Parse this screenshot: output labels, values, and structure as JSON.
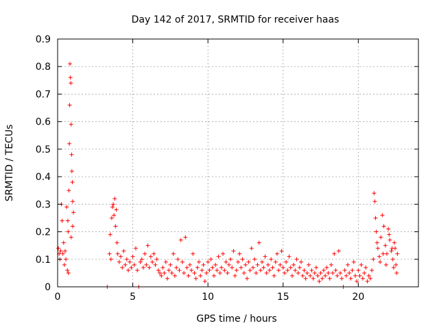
{
  "chart_data": {
    "type": "scatter",
    "title": "Day 142 of 2017, SRMTID for receiver haas",
    "xlabel": "GPS time / hours",
    "ylabel": "SRMTID / TECUs",
    "xlim": [
      0,
      24
    ],
    "ylim": [
      0,
      0.9
    ],
    "x_ticks": [
      "0",
      "5",
      "10",
      "15",
      "20"
    ],
    "y_ticks": [
      "0",
      "0.1",
      "0.2",
      "0.3",
      "0.4",
      "0.5",
      "0.6",
      "0.7",
      "0.8",
      "0.9"
    ],
    "x_tick_values": [
      0,
      5,
      10,
      15,
      20
    ],
    "y_tick_values": [
      0,
      0.1,
      0.2,
      0.3,
      0.4,
      0.5,
      0.6,
      0.7,
      0.8,
      0.9
    ],
    "grid": true,
    "marker": "plus",
    "color": "#ff0000",
    "series": [
      {
        "name": "SRMTID",
        "points": [
          [
            0.05,
            0.14
          ],
          [
            0.1,
            0.12
          ],
          [
            0.15,
            0.1
          ],
          [
            0.2,
            0.13
          ],
          [
            0.25,
            0.3
          ],
          [
            0.3,
            0.24
          ],
          [
            0.35,
            0.12
          ],
          [
            0.4,
            0.16
          ],
          [
            0.45,
            0.08
          ],
          [
            0.5,
            0.13
          ],
          [
            0.55,
            0.1
          ],
          [
            0.6,
            0.29
          ],
          [
            0.65,
            0.06
          ],
          [
            0.7,
            0.2
          ],
          [
            0.75,
            0.35
          ],
          [
            0.78,
            0.52
          ],
          [
            0.8,
            0.66
          ],
          [
            0.82,
            0.81
          ],
          [
            0.85,
            0.76
          ],
          [
            0.88,
            0.74
          ],
          [
            0.9,
            0.59
          ],
          [
            0.93,
            0.48
          ],
          [
            0.95,
            0.42
          ],
          [
            0.98,
            0.38
          ],
          [
            1.0,
            0.31
          ],
          [
            1.05,
            0.27
          ],
          [
            0.72,
            0.05
          ],
          [
            0.68,
            0.24
          ],
          [
            0.9,
            0.18
          ],
          [
            1.0,
            0.22
          ],
          [
            3.3,
            0.0
          ],
          [
            3.45,
            0.12
          ],
          [
            3.5,
            0.19
          ],
          [
            3.55,
            0.1
          ],
          [
            3.6,
            0.25
          ],
          [
            3.65,
            0.29
          ],
          [
            3.7,
            0.3
          ],
          [
            3.75,
            0.26
          ],
          [
            3.8,
            0.32
          ],
          [
            3.85,
            0.22
          ],
          [
            3.9,
            0.28
          ],
          [
            3.95,
            0.16
          ],
          [
            4.0,
            0.12
          ],
          [
            4.1,
            0.09
          ],
          [
            4.2,
            0.11
          ],
          [
            4.3,
            0.07
          ],
          [
            4.4,
            0.13
          ],
          [
            4.5,
            0.08
          ],
          [
            4.6,
            0.1
          ],
          [
            4.7,
            0.06
          ],
          [
            4.8,
            0.09
          ],
          [
            4.9,
            0.07
          ],
          [
            5.0,
            0.11
          ],
          [
            5.1,
            0.08
          ],
          [
            5.2,
            0.14
          ],
          [
            5.3,
            0.06
          ],
          [
            5.4,
            0.0
          ],
          [
            5.5,
            0.09
          ],
          [
            5.6,
            0.1
          ],
          [
            5.7,
            0.07
          ],
          [
            5.8,
            0.12
          ],
          [
            5.9,
            0.08
          ],
          [
            6.0,
            0.15
          ],
          [
            6.1,
            0.07
          ],
          [
            6.2,
            0.11
          ],
          [
            6.3,
            0.09
          ],
          [
            6.4,
            0.12
          ],
          [
            6.5,
            0.08
          ],
          [
            6.6,
            0.1
          ],
          [
            6.7,
            0.06
          ],
          [
            6.8,
            0.05
          ],
          [
            6.9,
            0.04
          ],
          [
            7.0,
            0.07
          ],
          [
            7.1,
            0.05
          ],
          [
            7.2,
            0.09
          ],
          [
            7.3,
            0.03
          ],
          [
            7.4,
            0.06
          ],
          [
            7.5,
            0.08
          ],
          [
            7.6,
            0.05
          ],
          [
            7.7,
            0.12
          ],
          [
            7.8,
            0.04
          ],
          [
            7.9,
            0.07
          ],
          [
            8.0,
            0.1
          ],
          [
            8.1,
            0.06
          ],
          [
            8.2,
            0.17
          ],
          [
            8.3,
            0.09
          ],
          [
            8.4,
            0.05
          ],
          [
            8.5,
            0.18
          ],
          [
            8.6,
            0.07
          ],
          [
            8.7,
            0.04
          ],
          [
            8.8,
            0.08
          ],
          [
            8.9,
            0.06
          ],
          [
            9.0,
            0.12
          ],
          [
            9.1,
            0.05
          ],
          [
            9.2,
            0.03
          ],
          [
            9.3,
            0.07
          ],
          [
            9.4,
            0.09
          ],
          [
            9.5,
            0.04
          ],
          [
            9.6,
            0.06
          ],
          [
            9.7,
            0.08
          ],
          [
            9.8,
            0.02
          ],
          [
            9.9,
            0.05
          ],
          [
            10.0,
            0.09
          ],
          [
            10.1,
            0.06
          ],
          [
            10.2,
            0.1
          ],
          [
            10.3,
            0.07
          ],
          [
            10.4,
            0.04
          ],
          [
            10.5,
            0.08
          ],
          [
            10.6,
            0.06
          ],
          [
            10.7,
            0.11
          ],
          [
            10.8,
            0.05
          ],
          [
            10.9,
            0.07
          ],
          [
            11.0,
            0.12
          ],
          [
            11.1,
            0.06
          ],
          [
            11.2,
            0.09
          ],
          [
            11.3,
            0.05
          ],
          [
            11.4,
            0.08
          ],
          [
            11.5,
            0.1
          ],
          [
            11.6,
            0.07
          ],
          [
            11.7,
            0.13
          ],
          [
            11.8,
            0.04
          ],
          [
            11.9,
            0.06
          ],
          [
            12.0,
            0.09
          ],
          [
            12.1,
            0.12
          ],
          [
            12.2,
            0.07
          ],
          [
            12.3,
            0.1
          ],
          [
            12.4,
            0.05
          ],
          [
            12.5,
            0.08
          ],
          [
            12.6,
            0.03
          ],
          [
            12.7,
            0.09
          ],
          [
            12.8,
            0.06
          ],
          [
            12.9,
            0.14
          ],
          [
            13.0,
            0.07
          ],
          [
            13.1,
            0.1
          ],
          [
            13.2,
            0.05
          ],
          [
            13.3,
            0.08
          ],
          [
            13.4,
            0.16
          ],
          [
            13.5,
            0.06
          ],
          [
            13.6,
            0.09
          ],
          [
            13.7,
            0.07
          ],
          [
            13.8,
            0.11
          ],
          [
            13.9,
            0.05
          ],
          [
            14.0,
            0.08
          ],
          [
            14.1,
            0.06
          ],
          [
            14.2,
            0.1
          ],
          [
            14.3,
            0.07
          ],
          [
            14.4,
            0.04
          ],
          [
            14.5,
            0.09
          ],
          [
            14.6,
            0.12
          ],
          [
            14.7,
            0.06
          ],
          [
            14.8,
            0.08
          ],
          [
            14.9,
            0.13
          ],
          [
            15.0,
            0.07
          ],
          [
            15.1,
            0.05
          ],
          [
            15.2,
            0.09
          ],
          [
            15.3,
            0.06
          ],
          [
            15.4,
            0.11
          ],
          [
            15.5,
            0.07
          ],
          [
            15.6,
            0.04
          ],
          [
            15.7,
            0.08
          ],
          [
            15.8,
            0.06
          ],
          [
            15.9,
            0.1
          ],
          [
            16.0,
            0.05
          ],
          [
            16.1,
            0.07
          ],
          [
            16.2,
            0.09
          ],
          [
            16.3,
            0.04
          ],
          [
            16.4,
            0.06
          ],
          [
            16.5,
            0.03
          ],
          [
            16.6,
            0.05
          ],
          [
            16.7,
            0.08
          ],
          [
            16.8,
            0.04
          ],
          [
            16.9,
            0.06
          ],
          [
            17.0,
            0.03
          ],
          [
            17.1,
            0.05
          ],
          [
            17.2,
            0.07
          ],
          [
            17.3,
            0.04
          ],
          [
            17.4,
            0.02
          ],
          [
            17.5,
            0.05
          ],
          [
            17.6,
            0.03
          ],
          [
            17.7,
            0.06
          ],
          [
            17.8,
            0.04
          ],
          [
            17.9,
            0.07
          ],
          [
            18.0,
            0.05
          ],
          [
            18.1,
            0.03
          ],
          [
            18.2,
            0.08
          ],
          [
            18.3,
            0.05
          ],
          [
            18.4,
            0.12
          ],
          [
            18.5,
            0.06
          ],
          [
            18.6,
            0.04
          ],
          [
            18.7,
            0.13
          ],
          [
            18.8,
            0.05
          ],
          [
            18.9,
            0.03
          ],
          [
            19.0,
            0.0
          ],
          [
            19.1,
            0.06
          ],
          [
            19.2,
            0.04
          ],
          [
            19.3,
            0.08
          ],
          [
            19.4,
            0.05
          ],
          [
            19.5,
            0.03
          ],
          [
            19.6,
            0.06
          ],
          [
            19.7,
            0.09
          ],
          [
            19.8,
            0.04
          ],
          [
            19.9,
            0.02
          ],
          [
            20.0,
            0.06
          ],
          [
            20.1,
            0.04
          ],
          [
            20.2,
            0.08
          ],
          [
            20.3,
            0.03
          ],
          [
            20.4,
            0.05
          ],
          [
            20.5,
            0.07
          ],
          [
            20.6,
            0.02
          ],
          [
            20.7,
            0.04
          ],
          [
            20.8,
            0.03
          ],
          [
            20.9,
            0.06
          ],
          [
            21.0,
            0.1
          ],
          [
            21.05,
            0.34
          ],
          [
            21.1,
            0.31
          ],
          [
            21.15,
            0.25
          ],
          [
            21.2,
            0.2
          ],
          [
            21.3,
            0.14
          ],
          [
            21.4,
            0.11
          ],
          [
            21.5,
            0.18
          ],
          [
            21.6,
            0.26
          ],
          [
            21.7,
            0.22
          ],
          [
            21.8,
            0.15
          ],
          [
            21.9,
            0.12
          ],
          [
            22.0,
            0.21
          ],
          [
            22.1,
            0.17
          ],
          [
            22.2,
            0.13
          ],
          [
            22.3,
            0.1
          ],
          [
            22.4,
            0.16
          ],
          [
            22.5,
            0.08
          ],
          [
            22.6,
            0.12
          ],
          [
            22.55,
            0.05
          ],
          [
            22.45,
            0.14
          ],
          [
            22.35,
            0.07
          ],
          [
            21.25,
            0.16
          ],
          [
            21.45,
            0.09
          ],
          [
            21.65,
            0.12
          ],
          [
            21.85,
            0.08
          ],
          [
            22.05,
            0.19
          ],
          [
            22.25,
            0.14
          ]
        ]
      }
    ]
  }
}
